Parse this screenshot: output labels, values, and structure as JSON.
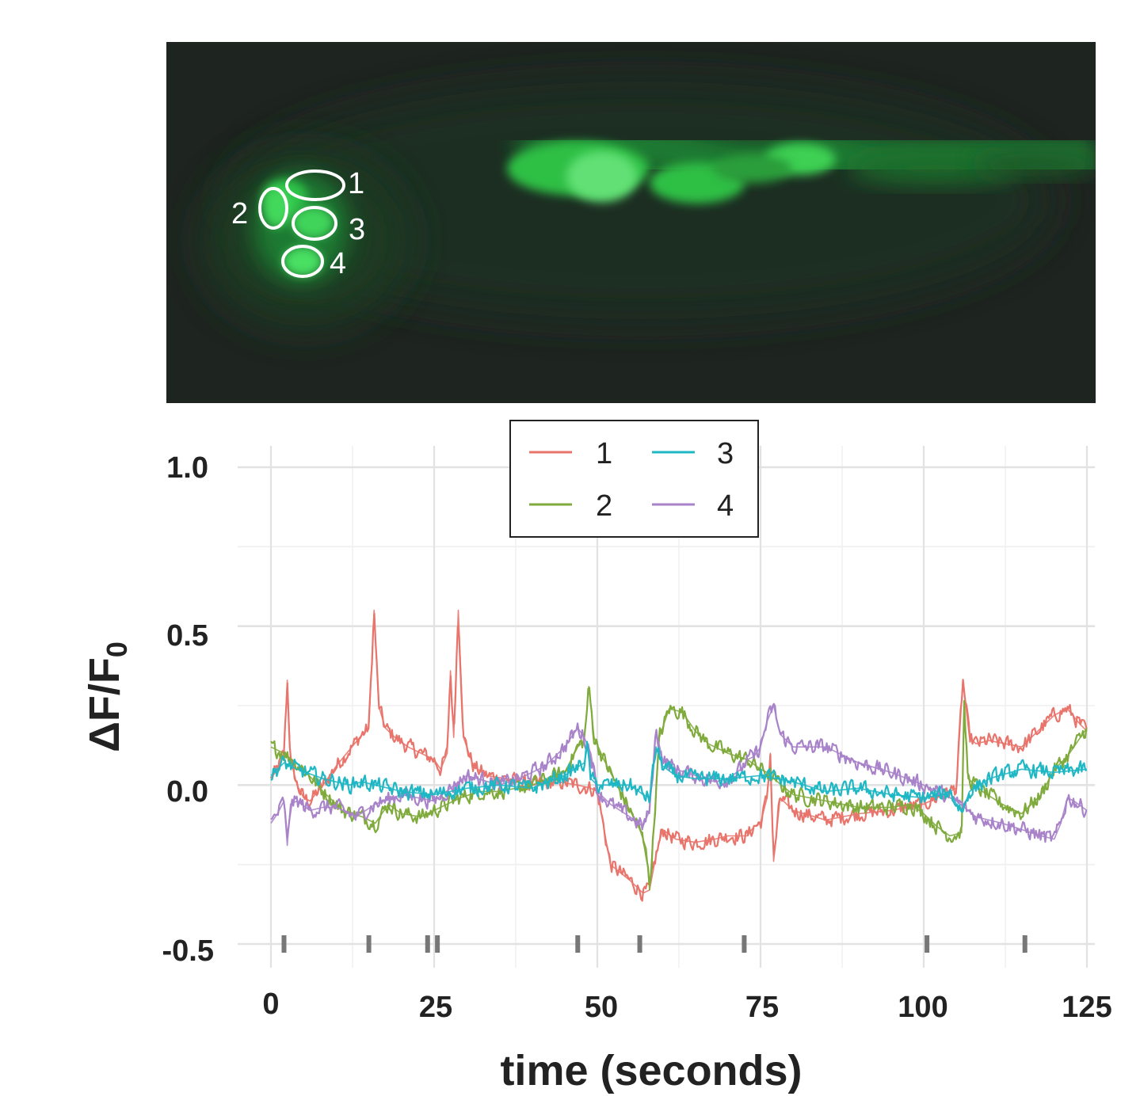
{
  "image_panel": {
    "roi_labels": [
      "1",
      "2",
      "3",
      "4"
    ]
  },
  "chart_data": {
    "type": "line",
    "xlabel": "time (seconds)",
    "ylabel": "ΔF/F",
    "ylabel_subscript": "0",
    "xlim": [
      0,
      125
    ],
    "ylim": [
      -0.5,
      1.0
    ],
    "xticks": [
      0,
      25,
      50,
      75,
      100,
      125
    ],
    "xtick_labels": [
      "0",
      "25",
      "50",
      "75",
      "100",
      "125"
    ],
    "yticks": [
      -0.5,
      0.0,
      0.5,
      1.0
    ],
    "ytick_labels": [
      "-0.5",
      "0.0",
      "0.5",
      "1.0"
    ],
    "grid": true,
    "legend_position": "top-center",
    "series": [
      {
        "name": "1",
        "color": "#e8746c",
        "x": [
          0,
          1,
          2,
          2.5,
          3,
          4,
          5,
          6,
          8,
          10,
          12,
          14,
          15,
          15.8,
          16.5,
          17.5,
          19,
          21,
          23,
          25,
          26,
          27,
          27.5,
          28,
          28.7,
          29.5,
          31,
          33,
          36,
          40,
          44,
          47,
          49,
          50,
          52,
          55,
          57,
          58,
          59,
          60,
          62,
          65,
          68,
          70,
          72,
          73,
          74,
          75,
          76,
          76.5,
          77,
          78,
          80,
          85,
          90,
          95,
          100,
          103,
          105,
          106,
          107,
          108,
          110,
          115,
          118,
          120,
          122,
          124,
          125
        ],
        "y": [
          0.02,
          0.05,
          0.1,
          0.33,
          0.08,
          0.0,
          -0.04,
          -0.05,
          0.0,
          0.06,
          0.11,
          0.16,
          0.18,
          0.55,
          0.25,
          0.18,
          0.15,
          0.12,
          0.1,
          0.08,
          0.05,
          0.1,
          0.36,
          0.15,
          0.55,
          0.15,
          0.06,
          0.03,
          0.02,
          0.0,
          0.01,
          0.0,
          -0.01,
          -0.02,
          -0.25,
          -0.3,
          -0.34,
          -0.33,
          -0.22,
          -0.14,
          -0.17,
          -0.18,
          -0.17,
          -0.16,
          -0.16,
          -0.16,
          -0.13,
          -0.12,
          -0.04,
          0.1,
          -0.24,
          -0.04,
          -0.08,
          -0.11,
          -0.09,
          -0.08,
          -0.06,
          -0.03,
          -0.01,
          0.33,
          0.15,
          0.13,
          0.14,
          0.12,
          0.18,
          0.22,
          0.24,
          0.19,
          0.17
        ]
      },
      {
        "name": "2",
        "color": "#7faa3c",
        "x": [
          0,
          2,
          5,
          8,
          11,
          14,
          16,
          18,
          20,
          23,
          26,
          29,
          32,
          35,
          40,
          45,
          47,
          48,
          48.7,
          49.5,
          51,
          53,
          55,
          56.5,
          57.5,
          58,
          58.7,
          59.5,
          61,
          63,
          65,
          67,
          70,
          73,
          75,
          76,
          77,
          80,
          85,
          90,
          95,
          98,
          100,
          102,
          104,
          105.8,
          106.2,
          106.8,
          109,
          112,
          115,
          118,
          120,
          122,
          125
        ],
        "y": [
          0.12,
          0.1,
          0.05,
          -0.02,
          -0.08,
          -0.1,
          -0.12,
          -0.06,
          -0.09,
          -0.1,
          -0.07,
          -0.04,
          -0.02,
          -0.02,
          0.0,
          0.04,
          0.12,
          0.14,
          0.31,
          0.15,
          0.08,
          0.0,
          -0.08,
          -0.14,
          -0.2,
          -0.33,
          -0.12,
          0.15,
          0.24,
          0.23,
          0.17,
          0.13,
          0.1,
          0.08,
          0.05,
          0.04,
          0.02,
          -0.03,
          -0.05,
          -0.07,
          -0.07,
          -0.06,
          -0.09,
          -0.13,
          -0.16,
          -0.15,
          0.24,
          0.02,
          -0.02,
          -0.06,
          -0.09,
          -0.03,
          0.05,
          0.09,
          0.18
        ]
      },
      {
        "name": "3",
        "color": "#1fb7c4",
        "x": [
          0,
          2,
          4,
          8,
          12,
          14,
          16,
          20,
          25,
          30,
          35,
          40,
          45,
          48,
          48.5,
          49,
          50,
          52,
          55,
          57,
          58,
          59,
          60,
          62,
          65,
          70,
          75,
          80,
          85,
          90,
          95,
          100,
          103,
          104,
          105,
          106,
          107,
          110,
          115,
          120,
          125
        ],
        "y": [
          0.03,
          0.07,
          0.05,
          0.02,
          0.0,
          0.01,
          0.0,
          -0.02,
          -0.03,
          -0.01,
          0.0,
          -0.01,
          0.03,
          0.07,
          0.12,
          0.02,
          0.0,
          0.0,
          0.0,
          -0.03,
          -0.04,
          0.12,
          0.06,
          0.03,
          0.02,
          0.02,
          0.03,
          0.01,
          -0.02,
          -0.01,
          -0.03,
          -0.04,
          -0.03,
          -0.02,
          -0.06,
          -0.08,
          -0.02,
          0.02,
          0.05,
          0.04,
          0.05
        ]
      },
      {
        "name": "4",
        "color": "#a983c9",
        "x": [
          0,
          1,
          2,
          2.5,
          3,
          4,
          6,
          8,
          10,
          13,
          16,
          20,
          25,
          30,
          35,
          38,
          42,
          45,
          47,
          48,
          49,
          50,
          52,
          55,
          57,
          58,
          59,
          60,
          62,
          65,
          68,
          70,
          72,
          73,
          74,
          75,
          76,
          77,
          78,
          80,
          85,
          90,
          95,
          100,
          102,
          105,
          108,
          110,
          112,
          115,
          118,
          120,
          121,
          122,
          123,
          125
        ],
        "y": [
          -0.12,
          -0.09,
          -0.05,
          -0.19,
          -0.06,
          -0.05,
          -0.08,
          -0.07,
          -0.07,
          -0.1,
          -0.06,
          -0.03,
          -0.05,
          0.03,
          0.0,
          0.02,
          0.06,
          0.12,
          0.18,
          0.15,
          0.1,
          -0.02,
          -0.06,
          -0.1,
          -0.13,
          -0.08,
          0.17,
          0.08,
          0.05,
          0.03,
          0.01,
          0.02,
          0.05,
          0.08,
          0.09,
          0.12,
          0.2,
          0.25,
          0.16,
          0.12,
          0.12,
          0.07,
          0.04,
          0.0,
          -0.02,
          -0.05,
          -0.1,
          -0.11,
          -0.12,
          -0.14,
          -0.16,
          -0.17,
          -0.12,
          -0.04,
          -0.05,
          -0.08
        ]
      }
    ],
    "event_marks": [
      2,
      15,
      24,
      25.5,
      47,
      56.5,
      72.5,
      100.5,
      115.5
    ]
  }
}
